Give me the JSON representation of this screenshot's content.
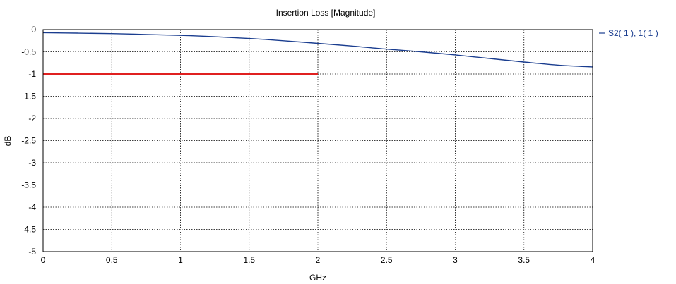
{
  "chart_data": {
    "type": "line",
    "title": "Insertion Loss [Magnitude]",
    "xlabel": "GHz",
    "ylabel": "dB",
    "xlim": [
      0,
      4
    ],
    "ylim": [
      -5,
      0
    ],
    "x_ticks": [
      0,
      0.5,
      1,
      1.5,
      2,
      2.5,
      3,
      3.5,
      4
    ],
    "y_ticks": [
      0,
      -0.5,
      -1,
      -1.5,
      -2,
      -2.5,
      -3,
      -3.5,
      -4,
      -4.5,
      -5
    ],
    "grid": true,
    "legend_position": "right",
    "series": [
      {
        "name": "S2( 1 ), 1( 1 )",
        "color": "#1a3d8f",
        "x": [
          0,
          0.25,
          0.5,
          0.75,
          1,
          1.25,
          1.5,
          1.75,
          2,
          2.25,
          2.5,
          2.75,
          3,
          3.25,
          3.5,
          3.75,
          4
        ],
        "y": [
          -0.07,
          -0.08,
          -0.09,
          -0.11,
          -0.13,
          -0.16,
          -0.2,
          -0.25,
          -0.31,
          -0.37,
          -0.44,
          -0.5,
          -0.57,
          -0.65,
          -0.73,
          -0.8,
          -0.84
        ]
      },
      {
        "color": "#e02020",
        "x": [
          0,
          2
        ],
        "y": [
          -1,
          -1
        ]
      }
    ]
  }
}
